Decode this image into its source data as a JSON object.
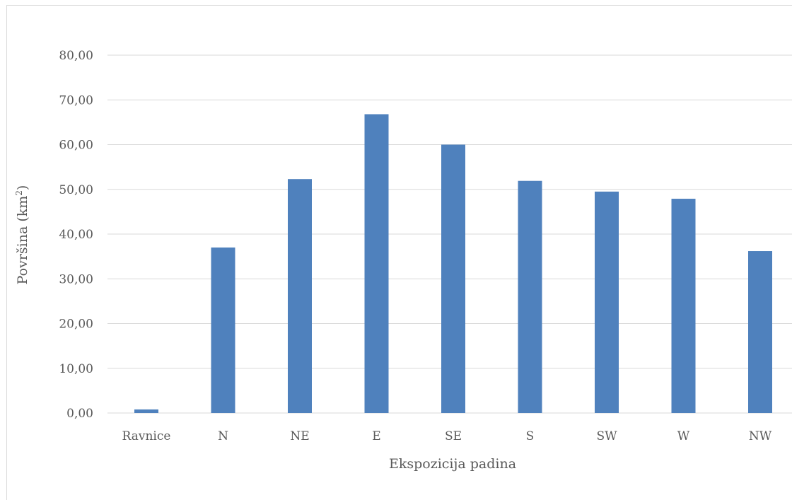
{
  "chart_data": {
    "type": "bar",
    "title": "",
    "xlabel": "Ekspozicija padina",
    "ylabel": "Površina (km²)",
    "ylabel_parts": {
      "main": "Površina (km",
      "sup": "2",
      "close": ")"
    },
    "categories": [
      "Ravnice",
      "N",
      "NE",
      "E",
      "SE",
      "S",
      "SW",
      "W",
      "NW"
    ],
    "values": [
      0.8,
      37.0,
      52.3,
      66.8,
      60.0,
      51.9,
      49.5,
      47.9,
      36.2
    ],
    "ylim": [
      0,
      80
    ],
    "yticks": [
      0,
      10,
      20,
      30,
      40,
      50,
      60,
      70,
      80
    ],
    "ytick_labels": [
      "0,00",
      "10,00",
      "20,00",
      "30,00",
      "40,00",
      "50,00",
      "60,00",
      "70,00",
      "80,00"
    ],
    "grid": true,
    "legend": "none",
    "bar_color": "#4f81bd",
    "grid_color": "#d9d9d9"
  }
}
